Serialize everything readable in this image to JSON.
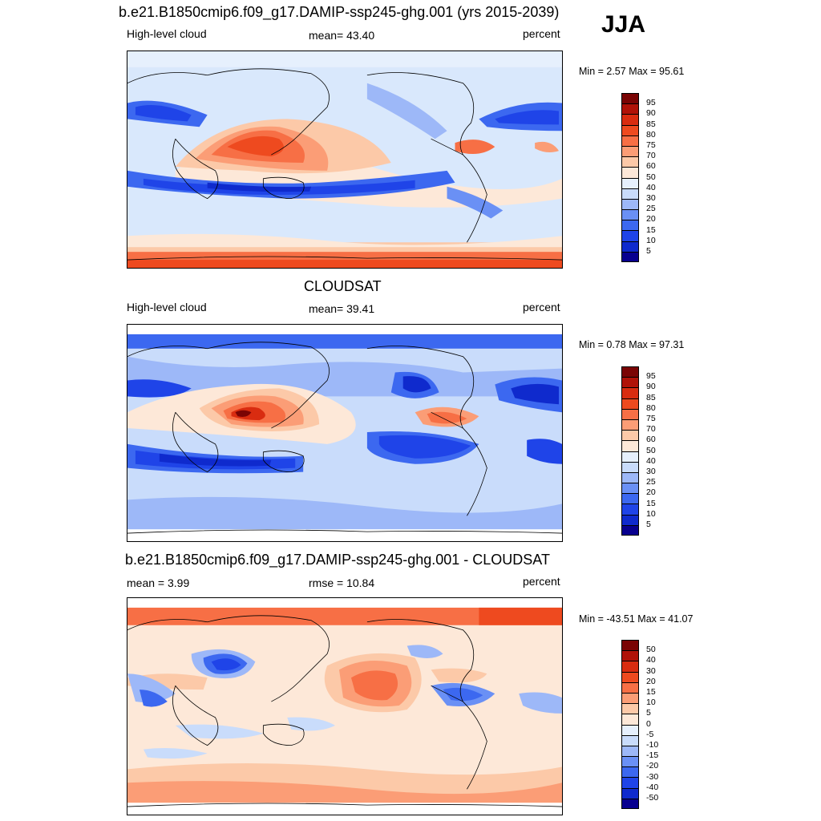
{
  "season": "JJA",
  "palette_abs": [
    "#08008f",
    "#0f2acd",
    "#1f44e8",
    "#3c68f0",
    "#6a90f5",
    "#9db8f8",
    "#c9dcfb",
    "#e6f0fd",
    "#fde8d8",
    "#fcc9a8",
    "#fb9d76",
    "#f76f45",
    "#ee4a1f",
    "#d92c10",
    "#b01208",
    "#7a0404"
  ],
  "palette_diff": [
    "#08008f",
    "#0f2acd",
    "#1f44e8",
    "#3c68f0",
    "#6a90f5",
    "#9db8f8",
    "#c9dcfb",
    "#e6f0fd",
    "#fde8d8",
    "#fcc9a8",
    "#fb9d76",
    "#f76f45",
    "#ee4a1f",
    "#d92c10",
    "#b01208",
    "#7a0404"
  ],
  "panels": [
    {
      "title": "b.e21.B1850cmip6.f09_g17.DAMIP-ssp245-ghg.001 (yrs 2015-2039)",
      "left_label": "High-level cloud",
      "center_label": "mean=  43.40",
      "right_label": "percent",
      "minmax": "Min =   2.57 Max =  95.61",
      "levels": [
        "95",
        "90",
        "85",
        "80",
        "75",
        "70",
        "60",
        "50",
        "40",
        "30",
        "25",
        "20",
        "15",
        "10",
        "5"
      ]
    },
    {
      "title": "CLOUDSAT",
      "left_label": "High-level cloud",
      "center_label": "mean=  39.41",
      "right_label": "percent",
      "minmax": "Min =   0.78 Max =  97.31",
      "levels": [
        "95",
        "90",
        "85",
        "80",
        "75",
        "70",
        "60",
        "50",
        "40",
        "30",
        "25",
        "20",
        "15",
        "10",
        "5"
      ]
    },
    {
      "title": "b.e21.B1850cmip6.f09_g17.DAMIP-ssp245-ghg.001 - CLOUDSAT",
      "left_label": "mean =   3.99",
      "center_label": "rmse =  10.84",
      "right_label": "percent",
      "minmax": "Min = -43.51 Max =  41.07",
      "levels": [
        "50",
        "40",
        "30",
        "20",
        "15",
        "10",
        "5",
        "0",
        "-5",
        "-10",
        "-15",
        "-20",
        "-30",
        "-40",
        "-50"
      ]
    }
  ]
}
